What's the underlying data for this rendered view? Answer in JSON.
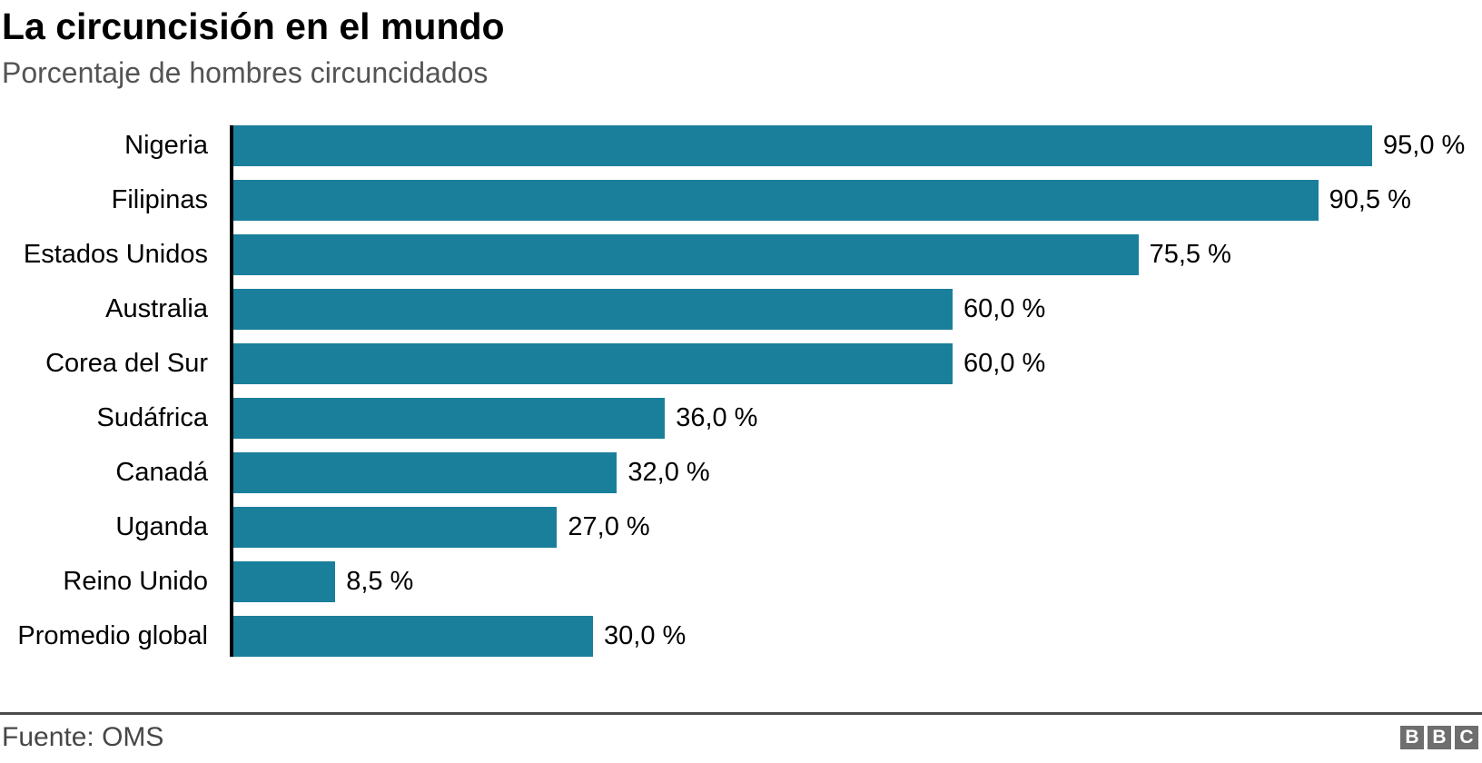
{
  "header": {
    "title": "La circuncisión en el mundo",
    "subtitle": "Porcentaje de hombres circuncidados"
  },
  "chart_data": {
    "type": "bar",
    "orientation": "horizontal",
    "title": "La circuncisión en el mundo",
    "subtitle": "Porcentaje de hombres circuncidados",
    "categories": [
      "Nigeria",
      "Filipinas",
      "Estados Unidos",
      "Australia",
      "Corea del Sur",
      "Sudáfrica",
      "Canadá",
      "Uganda",
      "Reino Unido",
      "Promedio global"
    ],
    "values": [
      95.0,
      90.5,
      75.5,
      60.0,
      60.0,
      36.0,
      32.0,
      27.0,
      8.5,
      30.0
    ],
    "value_labels": [
      "95,0 %",
      "90,5 %",
      "75,5 %",
      "60,0 %",
      "60,0 %",
      "36,0 %",
      "32,0 %",
      "27,0 %",
      "8,5 %",
      "30,0 %"
    ],
    "xlabel": "",
    "ylabel": "",
    "xlim": [
      0,
      100
    ],
    "grid": false,
    "legend": false,
    "bar_color": "#1a7f9b"
  },
  "footer": {
    "source": "Fuente: OMS",
    "logo_letters": [
      "B",
      "B",
      "C"
    ]
  },
  "colors": {
    "bar": "#1a7f9b",
    "axis": "#000000",
    "subtitle_text": "#545454",
    "source_text": "#474747",
    "divider": "#4c4c4c",
    "logo_bg": "#6e6e6e"
  }
}
